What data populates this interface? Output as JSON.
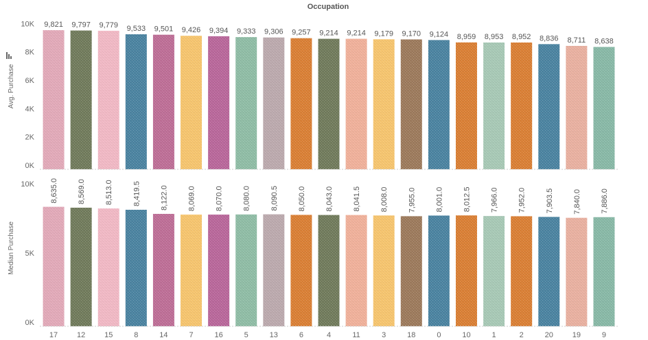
{
  "header": {
    "title": "Occupation"
  },
  "palette": [
    "#e1a9b8",
    "#717b5c",
    "#f0b8c4",
    "#4b83a0",
    "#bd6e96",
    "#f5c46e",
    "#b8679a",
    "#8fbca5",
    "#bba9ad",
    "#d97f35",
    "#efb09a",
    "#9c7a5c",
    "#a7c8b5",
    "#e8b0a0",
    "#88b8a6"
  ],
  "chart_data": [
    {
      "type": "bar",
      "title": "Occupation",
      "xlabel": "",
      "ylabel": "Avg. Purchase",
      "ylim": [
        0,
        10500
      ],
      "yticks": [
        0,
        2000,
        4000,
        6000,
        8000,
        10000
      ],
      "ytick_labels": [
        "0K",
        "2K",
        "4K",
        "6K",
        "8K",
        "10K"
      ],
      "grid": false,
      "categories": [
        "17",
        "12",
        "15",
        "8",
        "14",
        "7",
        "16",
        "5",
        "13",
        "6",
        "4",
        "11",
        "3",
        "18",
        "0",
        "10",
        "1",
        "2",
        "20",
        "19",
        "9"
      ],
      "values": [
        9821,
        9797,
        9779,
        9533,
        9501,
        9426,
        9394,
        9333,
        9306,
        9257,
        9214,
        9214,
        9179,
        9170,
        9124,
        8959,
        8953,
        8952,
        8836,
        8711,
        8638
      ],
      "value_labels": [
        "9,821",
        "9,797",
        "9,779",
        "9,533",
        "9,501",
        "9,426",
        "9,394",
        "9,333",
        "9,306",
        "9,257",
        "9,214",
        "9,214",
        "9,179",
        "9,170",
        "9,124",
        "8,959",
        "8,953",
        "8,952",
        "8,836",
        "8,711",
        "8,638"
      ],
      "colors": [
        "#e1a9b8",
        "#717b5c",
        "#f0b8c4",
        "#4b83a0",
        "#bd6e96",
        "#f5c46e",
        "#b8679a",
        "#8fbca5",
        "#bba9ad",
        "#d97f35",
        "#717b5c",
        "#efb09a",
        "#f5c46e",
        "#9c7a5c",
        "#4b83a0",
        "#d97f35",
        "#a7c8b5",
        "#d97f35",
        "#4b83a0",
        "#e8b0a0",
        "#88b8a6"
      ]
    },
    {
      "type": "bar",
      "title": "",
      "xlabel": "",
      "ylabel": "Median Purchase",
      "ylim": [
        0,
        10500
      ],
      "yticks": [
        0,
        5000,
        10000
      ],
      "ytick_labels": [
        "0K",
        "5K",
        "10K"
      ],
      "grid": false,
      "categories": [
        "17",
        "12",
        "15",
        "8",
        "14",
        "7",
        "16",
        "5",
        "13",
        "6",
        "4",
        "11",
        "3",
        "18",
        "0",
        "10",
        "1",
        "2",
        "20",
        "19",
        "9"
      ],
      "values": [
        8635.0,
        8569.0,
        8513.0,
        8419.5,
        8122.0,
        8069.0,
        8070.0,
        8080.0,
        8090.5,
        8050.0,
        8043.0,
        8041.5,
        8008.0,
        7955.0,
        8001.0,
        8012.5,
        7966.0,
        7952.0,
        7903.5,
        7840.0,
        7886.0
      ],
      "value_labels": [
        "8,635.0",
        "8,569.0",
        "8,513.0",
        "8,419.5",
        "8,122.0",
        "8,069.0",
        "8,070.0",
        "8,080.0",
        "8,090.5",
        "8,050.0",
        "8,043.0",
        "8,041.5",
        "8,008.0",
        "7,955.0",
        "8,001.0",
        "8,012.5",
        "7,966.0",
        "7,952.0",
        "7,903.5",
        "7,840.0",
        "7,886.0"
      ],
      "colors": [
        "#e1a9b8",
        "#717b5c",
        "#f0b8c4",
        "#4b83a0",
        "#bd6e96",
        "#f5c46e",
        "#b8679a",
        "#8fbca5",
        "#bba9ad",
        "#d97f35",
        "#717b5c",
        "#efb09a",
        "#f5c46e",
        "#9c7a5c",
        "#4b83a0",
        "#d97f35",
        "#a7c8b5",
        "#d97f35",
        "#4b83a0",
        "#e8b0a0",
        "#88b8a6"
      ]
    }
  ]
}
